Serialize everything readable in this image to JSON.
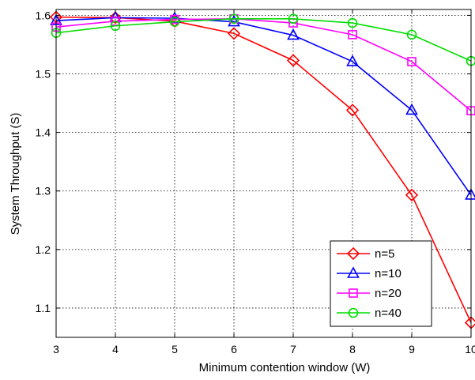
{
  "chart_data": {
    "type": "line",
    "xlabel": "Minimum contention window (W)",
    "ylabel": "System Throughput (S)",
    "xlim": [
      3,
      10
    ],
    "ylim": [
      1.05,
      1.61
    ],
    "grid": true,
    "legend_position": "bottom-right",
    "x": [
      3,
      4,
      5,
      6,
      7,
      8,
      9,
      10
    ],
    "x_tick_labels": [
      "3",
      "4",
      "5",
      "6",
      "7",
      "8",
      "9",
      "10"
    ],
    "y_ticks": [
      1.1,
      1.2,
      1.3,
      1.4,
      1.5,
      1.6
    ],
    "y_tick_labels": [
      "1.1",
      "1.2",
      "1.3",
      "1.4",
      "1.5",
      "1.6"
    ],
    "series": [
      {
        "name": "n=5",
        "marker": "diamond",
        "color": "#ff0000",
        "values": [
          1.597,
          1.596,
          1.59,
          1.569,
          1.523,
          1.438,
          1.293,
          1.075
        ]
      },
      {
        "name": "n=10",
        "marker": "triangle",
        "color": "#0000ff",
        "values": [
          1.591,
          1.596,
          1.595,
          1.589,
          1.566,
          1.521,
          1.438,
          1.293
        ]
      },
      {
        "name": "n=20",
        "marker": "square",
        "color": "#ff00ff",
        "values": [
          1.58,
          1.59,
          1.593,
          1.594,
          1.587,
          1.567,
          1.521,
          1.437
        ]
      },
      {
        "name": "n=40",
        "marker": "circle",
        "color": "#00dd00",
        "values": [
          1.57,
          1.582,
          1.589,
          1.594,
          1.594,
          1.587,
          1.567,
          1.522
        ]
      }
    ]
  }
}
